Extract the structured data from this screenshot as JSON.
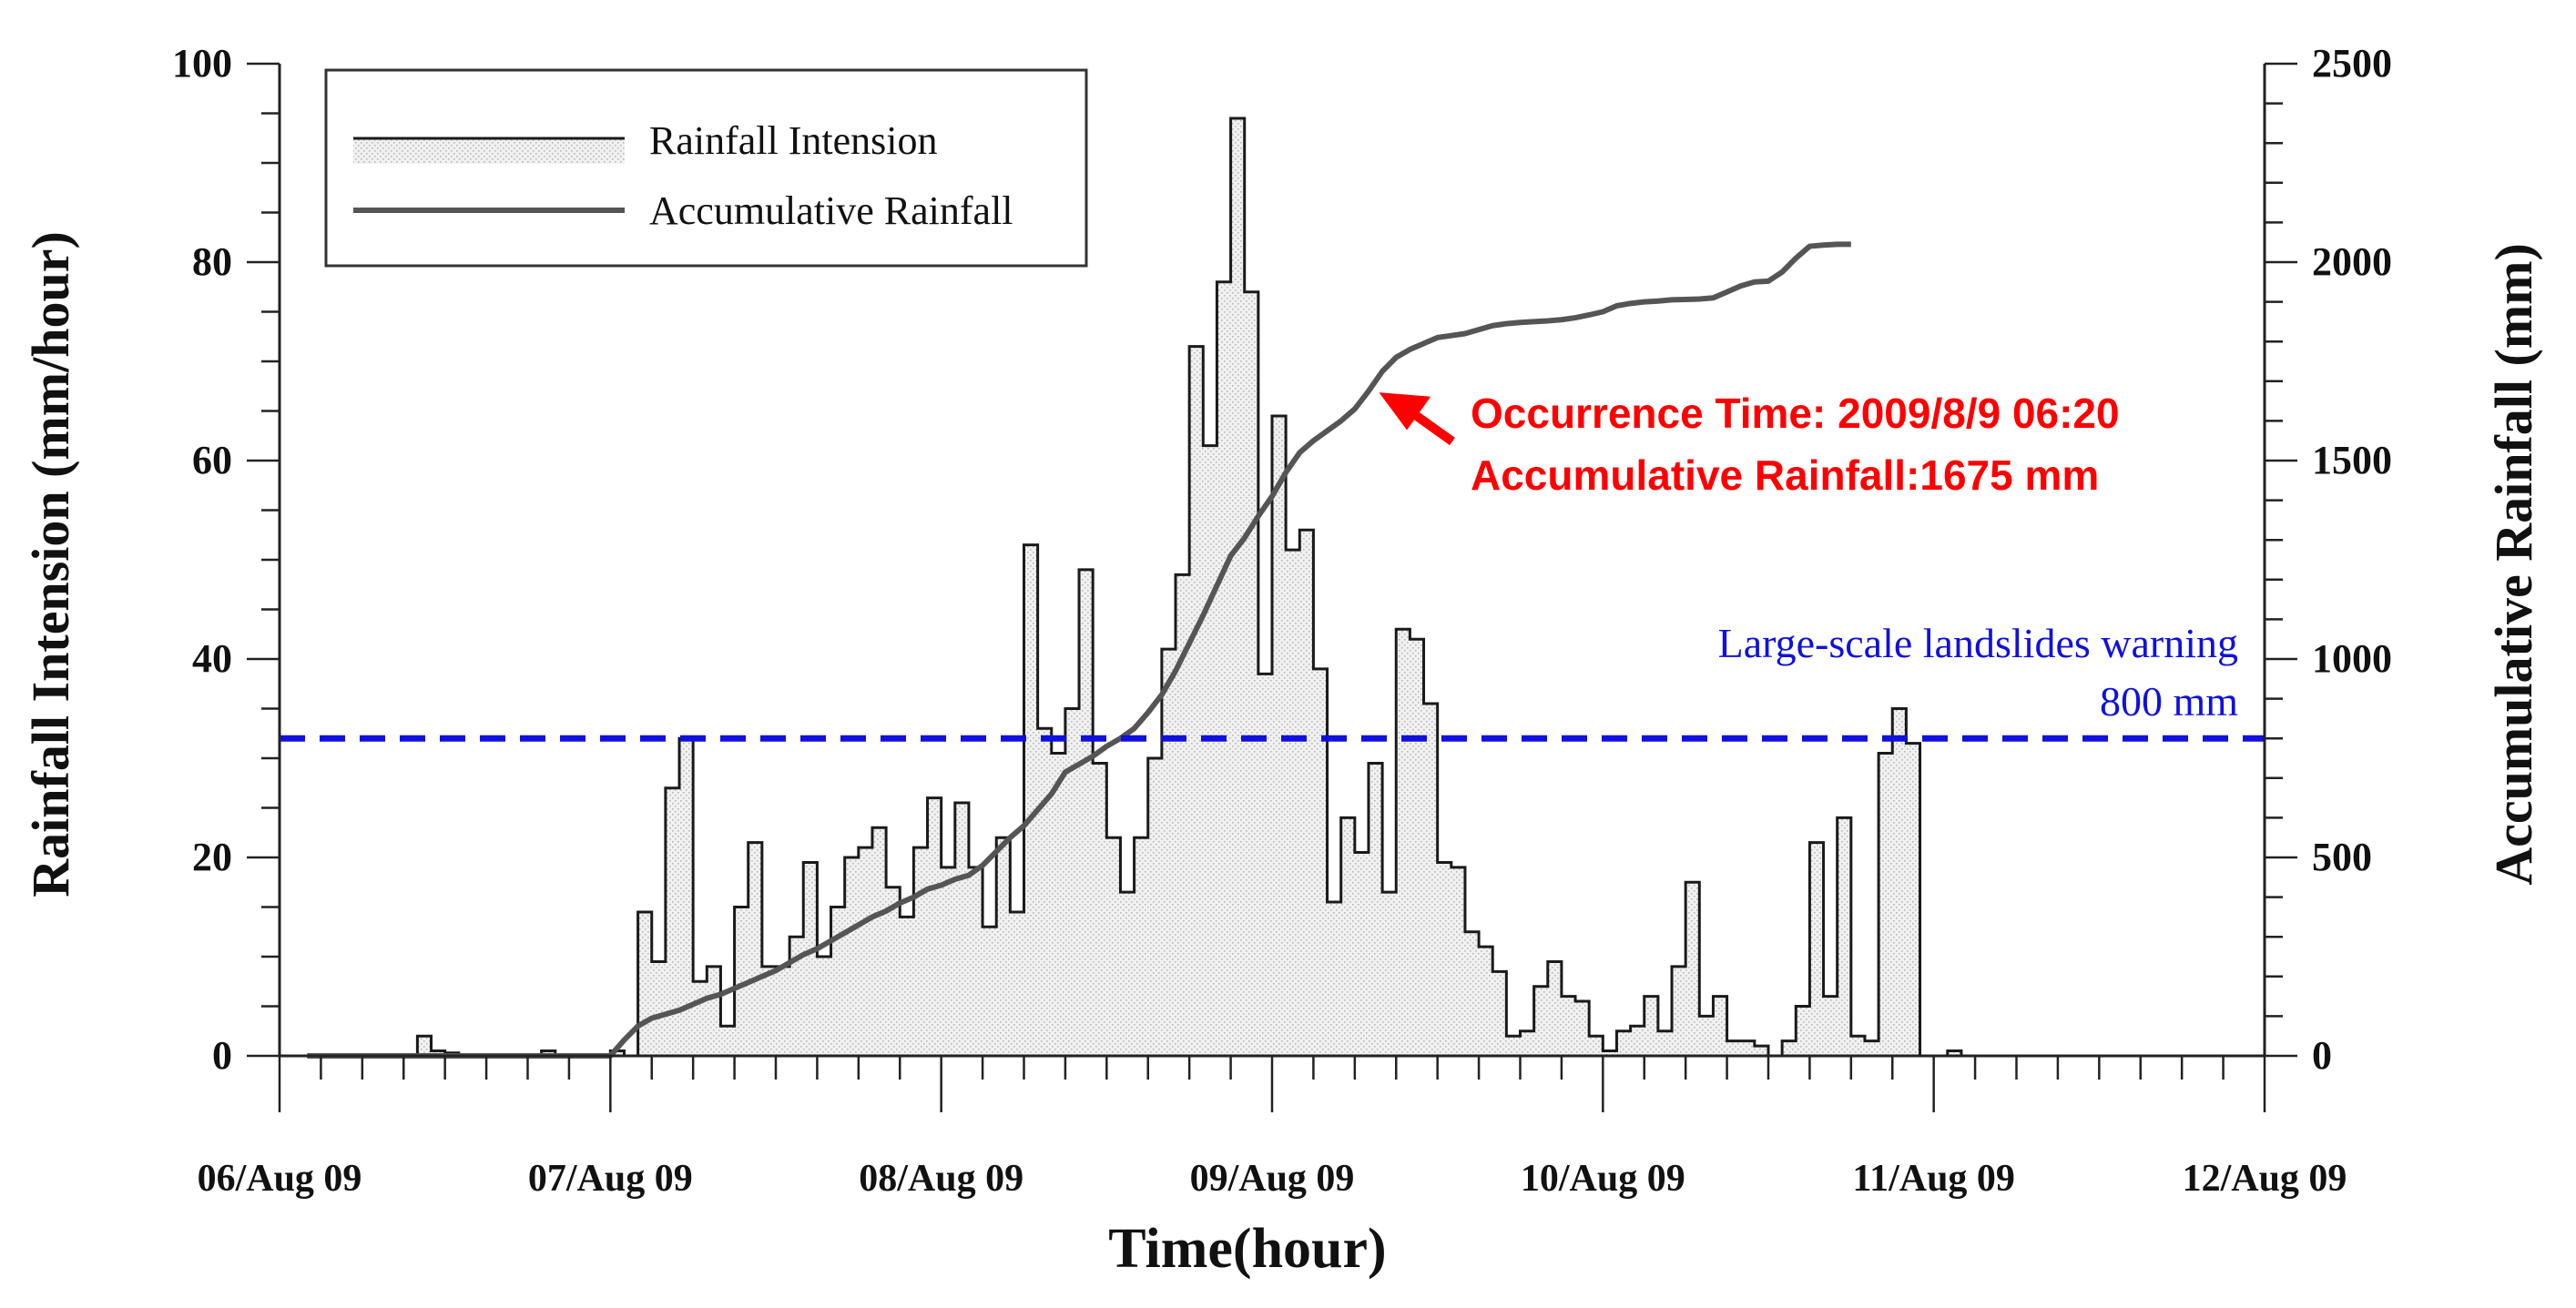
{
  "chart_data": {
    "type": "bar+line",
    "title": "",
    "xlabel": "Time(hour)",
    "ylabel_left": "Rainfall Intension (mm/hour)",
    "ylabel_right": "Accumulative Rainfall (mm)",
    "x_range_hours": [
      0,
      144
    ],
    "x_ticks": [
      {
        "label": "06/Aug 09",
        "hour": 0
      },
      {
        "label": "07/Aug 09",
        "hour": 24
      },
      {
        "label": "08/Aug 09",
        "hour": 48
      },
      {
        "label": "09/Aug 09",
        "hour": 72
      },
      {
        "label": "10/Aug 09",
        "hour": 96
      },
      {
        "label": "11/Aug 09",
        "hour": 120
      },
      {
        "label": "12/Aug 09",
        "hour": 144
      }
    ],
    "ylim_left": [
      0,
      100
    ],
    "yticks_left": [
      "0",
      "20",
      "40",
      "60",
      "80",
      "100"
    ],
    "ylim_right": [
      0,
      2500
    ],
    "yticks_right": [
      "0",
      "500",
      "1000",
      "1500",
      "2000",
      "2500"
    ],
    "legend": [
      {
        "label": "Rainfall Intension",
        "style": "step-hatched"
      },
      {
        "label": "Accumulative Rainfall",
        "style": "line"
      }
    ],
    "series": [
      {
        "name": "Rainfall Intension",
        "axis": "left",
        "start_hour": 2,
        "step_hours": 1,
        "values": [
          0,
          0,
          0,
          0,
          0,
          0,
          0,
          0,
          2,
          0.5,
          0.3,
          0,
          0,
          0,
          0,
          0,
          0,
          0.5,
          0,
          0,
          0,
          0,
          0.5,
          0,
          14.5,
          9.5,
          27,
          32,
          7.5,
          9,
          3,
          15,
          21.5,
          9,
          9,
          12,
          19.5,
          10,
          15,
          20,
          21,
          23,
          17,
          14,
          21,
          26,
          19,
          25.5,
          19,
          13,
          22,
          14.5,
          51.5,
          33,
          30.5,
          35,
          49,
          29.5,
          22,
          16.5,
          22,
          30,
          41,
          48.5,
          71.5,
          61.5,
          78,
          94.5,
          77,
          38.5,
          64.5,
          51,
          53,
          39,
          15.5,
          24,
          20.5,
          29.5,
          16.5,
          43,
          42,
          35.5,
          19.5,
          19,
          12.5,
          11,
          8.5,
          2,
          2.5,
          7,
          9.5,
          6,
          5.5,
          2,
          0.5,
          2.5,
          3,
          6,
          2.5,
          9,
          17.5,
          4,
          6,
          1.5,
          1.5,
          1,
          0,
          1.5,
          5,
          21.5,
          6,
          24,
          2,
          1.5,
          30.5,
          35,
          31.5,
          0,
          0,
          0.5
        ]
      },
      {
        "name": "Accumulative Rainfall",
        "axis": "right",
        "points": [
          [
            2,
            0
          ],
          [
            24,
            0
          ],
          [
            25,
            40
          ],
          [
            26,
            75
          ],
          [
            27,
            95
          ],
          [
            28,
            105
          ],
          [
            29,
            115
          ],
          [
            30,
            130
          ],
          [
            31,
            145
          ],
          [
            32,
            155
          ],
          [
            33,
            170
          ],
          [
            34,
            185
          ],
          [
            35,
            200
          ],
          [
            36,
            215
          ],
          [
            37,
            235
          ],
          [
            38,
            255
          ],
          [
            39,
            270
          ],
          [
            40,
            290
          ],
          [
            41,
            310
          ],
          [
            42,
            330
          ],
          [
            43,
            350
          ],
          [
            44,
            365
          ],
          [
            45,
            385
          ],
          [
            46,
            400
          ],
          [
            47,
            420
          ],
          [
            48,
            430
          ],
          [
            49,
            445
          ],
          [
            50,
            455
          ],
          [
            51,
            480
          ],
          [
            52,
            515
          ],
          [
            53,
            550
          ],
          [
            54,
            580
          ],
          [
            55,
            620
          ],
          [
            56,
            660
          ],
          [
            57,
            715
          ],
          [
            58,
            735
          ],
          [
            59,
            755
          ],
          [
            60,
            780
          ],
          [
            61,
            800
          ],
          [
            62,
            825
          ],
          [
            63,
            865
          ],
          [
            64,
            910
          ],
          [
            65,
            970
          ],
          [
            66,
            1040
          ],
          [
            67,
            1110
          ],
          [
            68,
            1185
          ],
          [
            69,
            1260
          ],
          [
            70,
            1305
          ],
          [
            71,
            1360
          ],
          [
            72,
            1410
          ],
          [
            73,
            1470
          ],
          [
            74,
            1520
          ],
          [
            75,
            1550
          ],
          [
            76,
            1575
          ],
          [
            77,
            1600
          ],
          [
            78,
            1630
          ],
          [
            79,
            1675
          ],
          [
            80,
            1725
          ],
          [
            81,
            1760
          ],
          [
            82,
            1780
          ],
          [
            83,
            1795
          ],
          [
            84,
            1810
          ],
          [
            85,
            1815
          ],
          [
            86,
            1820
          ],
          [
            87,
            1830
          ],
          [
            88,
            1840
          ],
          [
            89,
            1845
          ],
          [
            90,
            1848
          ],
          [
            91,
            1850
          ],
          [
            92,
            1852
          ],
          [
            93,
            1855
          ],
          [
            94,
            1860
          ],
          [
            95,
            1867
          ],
          [
            96,
            1875
          ],
          [
            97,
            1890
          ],
          [
            98,
            1896
          ],
          [
            99,
            1900
          ],
          [
            100,
            1902
          ],
          [
            101,
            1905
          ],
          [
            102,
            1906
          ],
          [
            103,
            1907
          ],
          [
            104,
            1910
          ],
          [
            105,
            1925
          ],
          [
            106,
            1940
          ],
          [
            107,
            1950
          ],
          [
            108,
            1952
          ],
          [
            109,
            1975
          ],
          [
            110,
            2010
          ],
          [
            111,
            2040
          ],
          [
            112,
            2043
          ],
          [
            113,
            2045
          ],
          [
            114,
            2045
          ]
        ]
      }
    ],
    "threshold": {
      "axis": "right",
      "value": 800,
      "label_line1": "Large-scale landslides warning",
      "label_line2": "800 mm",
      "color": "#1010e0"
    },
    "annotation": {
      "line1": "Occurrence Time: 2009/8/9 06:20",
      "line2": "Accumulative Rainfall:1675 mm",
      "at_hour": 79,
      "at_value": 1675,
      "color": "#ff0000"
    }
  }
}
